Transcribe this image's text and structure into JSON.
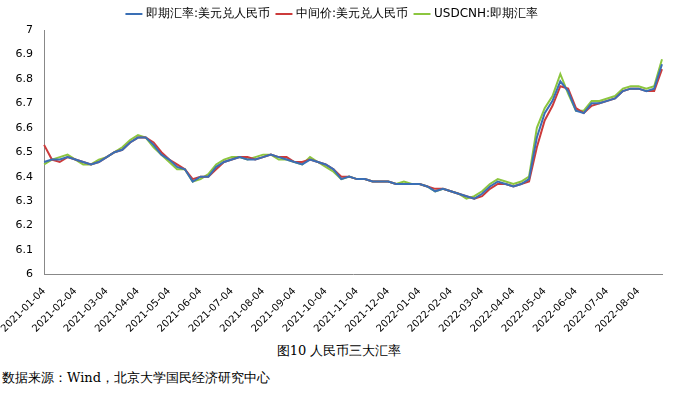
{
  "chart_data": {
    "type": "line",
    "title": "图10 人民币三大汇率",
    "source": "数据来源：Wind，北京大学国民经济研究中心",
    "categories": [
      "2021-01-04",
      null,
      null,
      null,
      "2021-02-04",
      null,
      null,
      null,
      "2021-03-04",
      null,
      null,
      null,
      "2021-04-04",
      null,
      null,
      null,
      "2021-05-04",
      null,
      null,
      null,
      "2021-06-04",
      null,
      null,
      null,
      "2021-07-04",
      null,
      null,
      null,
      "2021-08-04",
      null,
      null,
      null,
      "2021-09-04",
      null,
      null,
      null,
      "2021-10-04",
      null,
      null,
      null,
      "2021-11-04",
      null,
      null,
      null,
      "2021-12-04",
      null,
      null,
      null,
      "2022-01-04",
      null,
      null,
      null,
      "2022-02-04",
      null,
      null,
      null,
      "2022-03-04",
      null,
      null,
      null,
      "2022-04-04",
      null,
      null,
      null,
      "2022-05-04",
      null,
      null,
      null,
      "2022-06-04",
      null,
      null,
      null,
      "2022-07-04",
      null,
      null,
      null,
      "2022-08-04",
      null,
      null,
      null
    ],
    "series": [
      {
        "name": "即期汇率:美元兑人民币",
        "color": "#3a6fb5",
        "values": [
          6.46,
          6.47,
          6.47,
          6.48,
          6.47,
          6.46,
          6.45,
          6.46,
          6.48,
          6.5,
          6.51,
          6.54,
          6.56,
          6.56,
          6.53,
          6.49,
          6.47,
          6.44,
          6.43,
          6.38,
          6.4,
          6.4,
          6.44,
          6.46,
          6.47,
          6.48,
          6.47,
          6.47,
          6.48,
          6.49,
          6.48,
          6.47,
          6.46,
          6.45,
          6.47,
          6.46,
          6.45,
          6.43,
          6.39,
          6.4,
          6.39,
          6.39,
          6.38,
          6.38,
          6.38,
          6.37,
          6.37,
          6.37,
          6.37,
          6.36,
          6.34,
          6.35,
          6.34,
          6.33,
          6.32,
          6.31,
          6.33,
          6.36,
          6.38,
          6.37,
          6.36,
          6.37,
          6.39,
          6.56,
          6.66,
          6.71,
          6.79,
          6.75,
          6.67,
          6.66,
          6.7,
          6.7,
          6.71,
          6.72,
          6.75,
          6.76,
          6.76,
          6.75,
          6.76,
          6.86
        ]
      },
      {
        "name": "中间价:美元兑人民币",
        "color": "#cc3b3b",
        "values": [
          6.53,
          6.47,
          6.46,
          6.48,
          6.47,
          6.46,
          6.45,
          6.46,
          6.48,
          6.5,
          6.51,
          6.54,
          6.56,
          6.56,
          6.54,
          6.5,
          6.47,
          6.45,
          6.43,
          6.39,
          6.4,
          6.4,
          6.43,
          6.46,
          6.47,
          6.48,
          6.48,
          6.47,
          6.48,
          6.49,
          6.48,
          6.48,
          6.46,
          6.46,
          6.47,
          6.46,
          6.45,
          6.43,
          6.4,
          6.4,
          6.39,
          6.39,
          6.38,
          6.38,
          6.38,
          6.37,
          6.37,
          6.37,
          6.37,
          6.36,
          6.35,
          6.35,
          6.34,
          6.33,
          6.32,
          6.31,
          6.32,
          6.35,
          6.37,
          6.37,
          6.36,
          6.37,
          6.38,
          6.52,
          6.63,
          6.69,
          6.77,
          6.76,
          6.68,
          6.66,
          6.69,
          6.7,
          6.71,
          6.72,
          6.75,
          6.76,
          6.76,
          6.75,
          6.75,
          6.84
        ]
      },
      {
        "name": "USDCNH:即期汇率",
        "color": "#8cc63f",
        "values": [
          6.45,
          6.47,
          6.48,
          6.49,
          6.47,
          6.45,
          6.45,
          6.47,
          6.48,
          6.5,
          6.52,
          6.55,
          6.57,
          6.56,
          6.52,
          6.49,
          6.46,
          6.43,
          6.43,
          6.38,
          6.39,
          6.41,
          6.45,
          6.47,
          6.48,
          6.48,
          6.47,
          6.48,
          6.49,
          6.49,
          6.47,
          6.47,
          6.46,
          6.45,
          6.48,
          6.46,
          6.44,
          6.42,
          6.39,
          6.4,
          6.39,
          6.39,
          6.38,
          6.38,
          6.38,
          6.37,
          6.38,
          6.37,
          6.37,
          6.36,
          6.34,
          6.35,
          6.34,
          6.33,
          6.31,
          6.32,
          6.34,
          6.37,
          6.39,
          6.38,
          6.37,
          6.38,
          6.4,
          6.6,
          6.68,
          6.73,
          6.82,
          6.74,
          6.67,
          6.67,
          6.71,
          6.71,
          6.72,
          6.73,
          6.76,
          6.77,
          6.77,
          6.76,
          6.77,
          6.88
        ]
      }
    ],
    "ylim": [
      6,
      7
    ],
    "yticks": [
      6,
      6.1,
      6.2,
      6.3,
      6.4,
      6.5,
      6.6,
      6.7,
      6.8,
      6.9,
      7
    ],
    "grid": false,
    "legend": "top",
    "marker": "none"
  }
}
